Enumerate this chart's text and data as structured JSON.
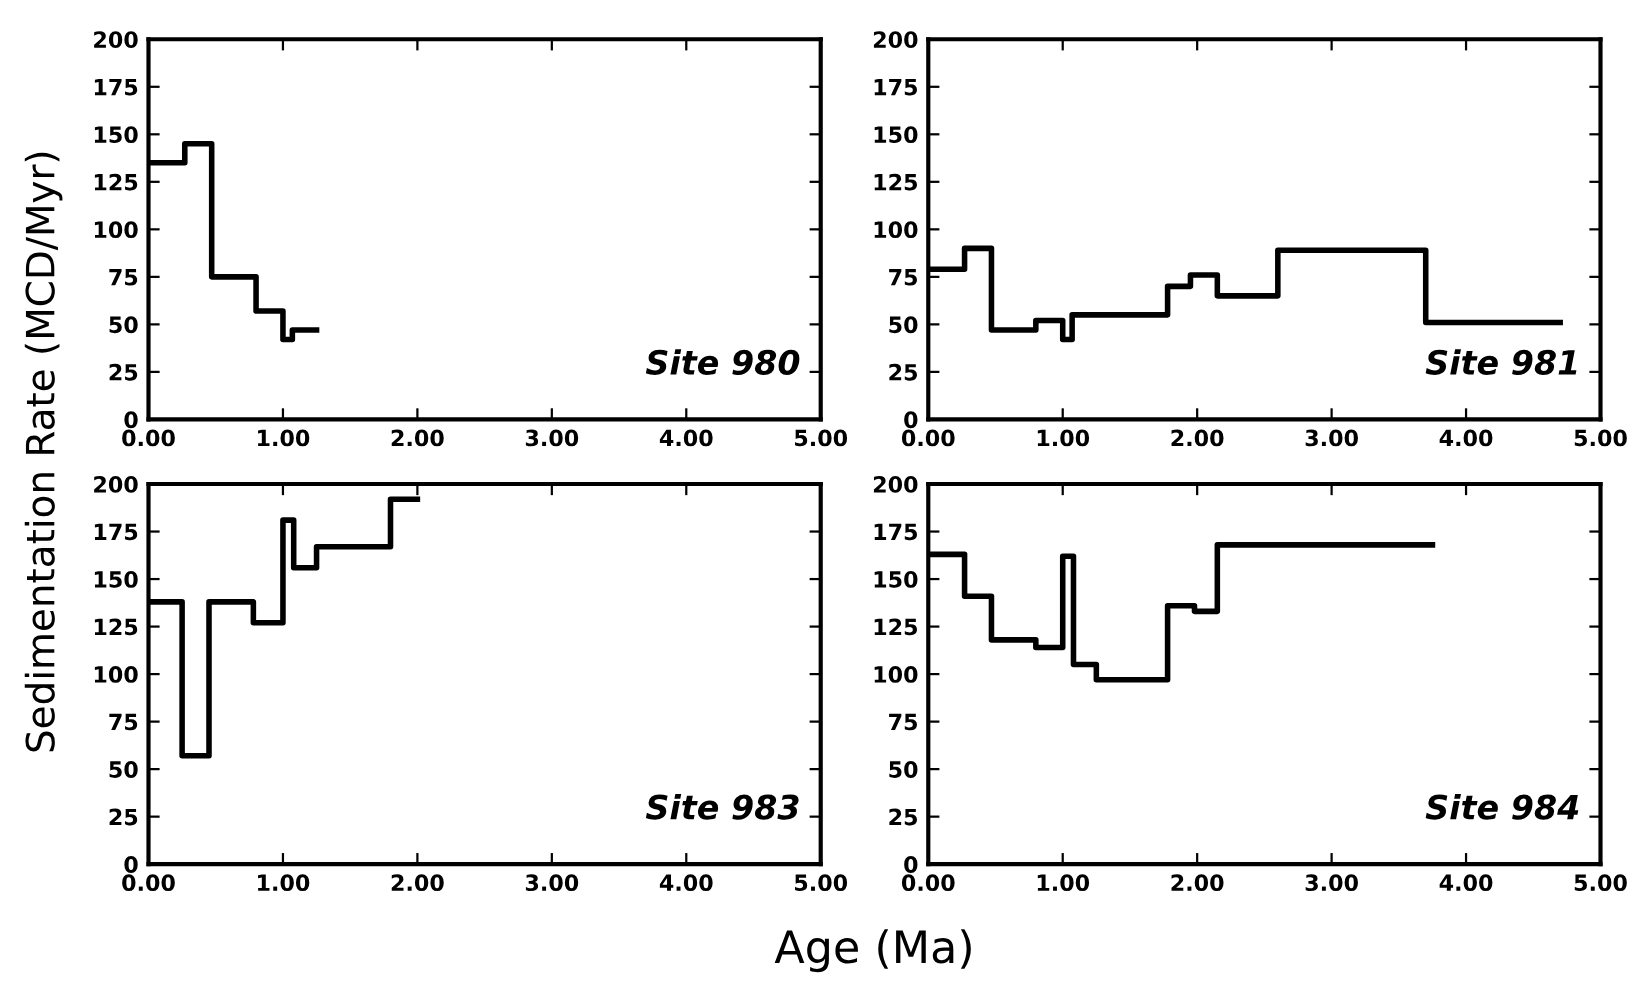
{
  "chart_data": [
    {
      "type": "step",
      "ylabel": "Sedimentation Rate (MCD/Myr)",
      "annotations": [
        "Site 980"
      ],
      "x": [
        0,
        0.27,
        0.47,
        0.8,
        1.0,
        1.07,
        1.25
      ],
      "series": [
        {
          "color": "#000000",
          "values": [
            135,
            145,
            75,
            57,
            42,
            47,
            47
          ]
        }
      ],
      "xlim": [
        0,
        5
      ],
      "ylim": [
        0,
        200
      ],
      "xticks": [
        {
          "value": 0,
          "label": "0.00"
        },
        {
          "value": 1,
          "label": "1.00"
        },
        {
          "value": 2,
          "label": "2.00"
        },
        {
          "value": 3,
          "label": "3.00"
        },
        {
          "value": 4,
          "label": "4.00"
        },
        {
          "value": 5,
          "label": "5.00"
        }
      ],
      "yticks": [
        0,
        25,
        50,
        75,
        100,
        125,
        150,
        175,
        200
      ],
      "grid": false
    },
    {
      "type": "step",
      "annotations": [
        "Site 981"
      ],
      "x": [
        0,
        0.27,
        0.47,
        0.8,
        1.0,
        1.07,
        1.78,
        1.95,
        2.15,
        2.6,
        3.7,
        4.7
      ],
      "series": [
        {
          "color": "#000000",
          "values": [
            79,
            90,
            47,
            52,
            42,
            55,
            70,
            76,
            65,
            89,
            51,
            51
          ]
        }
      ],
      "xlim": [
        0,
        5
      ],
      "ylim": [
        0,
        200
      ],
      "xticks": [
        {
          "value": 0,
          "label": "0.00"
        },
        {
          "value": 1,
          "label": "1.00"
        },
        {
          "value": 2,
          "label": "2.00"
        },
        {
          "value": 3,
          "label": "3.00"
        },
        {
          "value": 4,
          "label": "4.00"
        },
        {
          "value": 5,
          "label": "5.00"
        }
      ],
      "yticks": [
        0,
        25,
        50,
        75,
        100,
        125,
        150,
        175,
        200
      ],
      "grid": false
    },
    {
      "type": "step",
      "xlabel": "Age (Ma)",
      "annotations": [
        "Site 983"
      ],
      "x": [
        0,
        0.25,
        0.45,
        0.78,
        1.0,
        1.08,
        1.25,
        1.8,
        2.0
      ],
      "series": [
        {
          "color": "#000000",
          "values": [
            138,
            57,
            138,
            127,
            181,
            156,
            167,
            192,
            192
          ]
        }
      ],
      "xlim": [
        0,
        5
      ],
      "ylim": [
        0,
        200
      ],
      "xticks": [
        {
          "value": 0,
          "label": "0.00"
        },
        {
          "value": 1,
          "label": "1.00"
        },
        {
          "value": 2,
          "label": "2.00"
        },
        {
          "value": 3,
          "label": "3.00"
        },
        {
          "value": 4,
          "label": "4.00"
        },
        {
          "value": 5,
          "label": "5.00"
        }
      ],
      "yticks": [
        0,
        25,
        50,
        75,
        100,
        125,
        150,
        175,
        200
      ],
      "grid": false
    },
    {
      "type": "step",
      "annotations": [
        "Site 984"
      ],
      "x": [
        0,
        0.27,
        0.47,
        0.8,
        1.0,
        1.08,
        1.25,
        1.78,
        1.98,
        2.15,
        3.75
      ],
      "series": [
        {
          "color": "#000000",
          "values": [
            163,
            141,
            118,
            114,
            162,
            105,
            97,
            136,
            133,
            168,
            168
          ]
        }
      ],
      "xlim": [
        0,
        5
      ],
      "ylim": [
        0,
        200
      ],
      "xticks": [
        {
          "value": 0,
          "label": "0.00"
        },
        {
          "value": 1,
          "label": "1.00"
        },
        {
          "value": 2,
          "label": "2.00"
        },
        {
          "value": 3,
          "label": "3.00"
        },
        {
          "value": 4,
          "label": "4.00"
        },
        {
          "value": 5,
          "label": "5.00"
        }
      ],
      "yticks": [
        0,
        25,
        50,
        75,
        100,
        125,
        150,
        175,
        200
      ],
      "grid": false
    }
  ]
}
